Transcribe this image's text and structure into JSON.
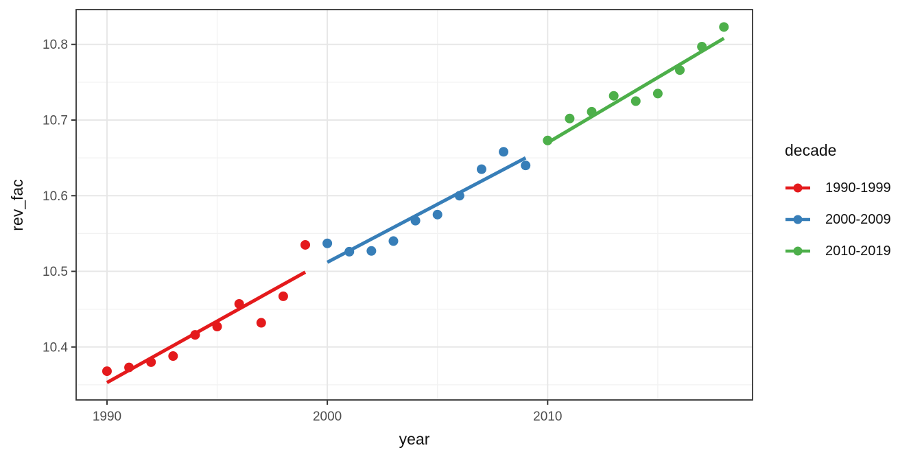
{
  "chart_data": {
    "type": "scatter",
    "title": "",
    "xlabel": "year",
    "ylabel": "rev_fac",
    "legend_title": "decade",
    "legend_position": "right",
    "grid": true,
    "background": "#ffffff",
    "panel_border_color": "#333333",
    "grid_major_color": "#e7e7e7",
    "grid_minor_color": "#f2f2f2",
    "tick_color": "#333333",
    "tick_label_color": "#4d4d4d",
    "xlim": [
      1988.6,
      2019.3
    ],
    "ylim": [
      10.33,
      10.846
    ],
    "x_ticks": [
      1990,
      2000,
      2010
    ],
    "x_tick_labels": [
      "1990",
      "2000",
      "2010"
    ],
    "x_minor_ticks": [
      1995,
      2005,
      2015
    ],
    "y_ticks": [
      10.4,
      10.5,
      10.6,
      10.7,
      10.8
    ],
    "y_tick_labels": [
      "10.4",
      "10.5",
      "10.6",
      "10.7",
      "10.8"
    ],
    "y_minor_ticks": [
      10.35,
      10.45,
      10.55,
      10.65,
      10.75
    ],
    "series": [
      {
        "name": "1990-1999",
        "color": "#E41A1C",
        "x": [
          1990,
          1991,
          1992,
          1993,
          1994,
          1995,
          1996,
          1997,
          1998,
          1999
        ],
        "y": [
          10.368,
          10.373,
          10.38,
          10.388,
          10.416,
          10.427,
          10.457,
          10.432,
          10.467,
          10.535
        ],
        "trend": {
          "x1": 1990,
          "y1": 10.353,
          "x2": 1999,
          "y2": 10.499
        }
      },
      {
        "name": "2000-2009",
        "color": "#377EB8",
        "x": [
          2000,
          2001,
          2002,
          2003,
          2004,
          2005,
          2006,
          2007,
          2008,
          2009
        ],
        "y": [
          10.537,
          10.526,
          10.527,
          10.54,
          10.567,
          10.575,
          10.6,
          10.635,
          10.658,
          10.64
        ],
        "trend": {
          "x1": 2000,
          "y1": 10.512,
          "x2": 2009,
          "y2": 10.65
        }
      },
      {
        "name": "2010-2019",
        "color": "#4DAF4A",
        "x": [
          2010,
          2011,
          2012,
          2013,
          2014,
          2015,
          2016,
          2017,
          2018
        ],
        "y": [
          10.673,
          10.702,
          10.711,
          10.732,
          10.725,
          10.735,
          10.766,
          10.797,
          10.823
        ],
        "trend": {
          "x1": 2010,
          "y1": 10.67,
          "x2": 2018,
          "y2": 10.808
        }
      }
    ]
  }
}
